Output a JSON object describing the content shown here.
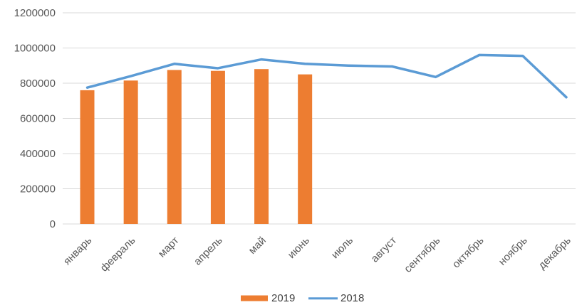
{
  "chart_data": {
    "type": "bar",
    "title": "",
    "xlabel": "",
    "ylabel": "",
    "categories": [
      "январь",
      "февраль",
      "март",
      "апрель",
      "май",
      "июнь",
      "июль",
      "август",
      "сентябрь",
      "октябрь",
      "ноябрь",
      "декабрь"
    ],
    "series": [
      {
        "name": "2019",
        "type": "bar",
        "color": "#ED7D31",
        "values": [
          760000,
          815000,
          875000,
          870000,
          880000,
          850000,
          null,
          null,
          null,
          null,
          null,
          null
        ]
      },
      {
        "name": "2018",
        "type": "line",
        "color": "#5B9BD5",
        "values": [
          775000,
          840000,
          910000,
          885000,
          935000,
          910000,
          900000,
          895000,
          835000,
          960000,
          955000,
          720000
        ]
      }
    ],
    "ylim": [
      0,
      1200000
    ],
    "yticks": [
      0,
      200000,
      400000,
      600000,
      800000,
      1000000,
      1200000
    ],
    "grid": true,
    "legend_position": "bottom",
    "colors": {
      "grid": "#D9D9D9",
      "axis_text": "#595959",
      "background": "#FFFFFF"
    }
  }
}
